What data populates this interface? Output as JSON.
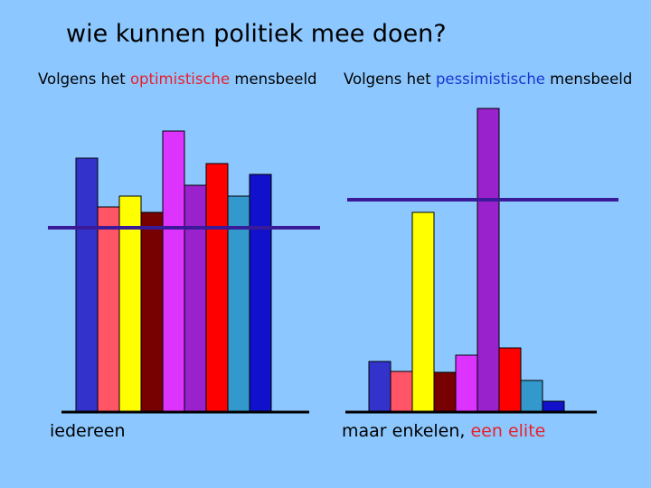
{
  "title": "wie kunnen politiek mee doen?",
  "chart_data": [
    {
      "type": "bar",
      "subtitle": {
        "prefix": "Volgens het ",
        "highlight": "optimistische",
        "suffix": " mensbeeld",
        "highlight_color": "#e8202c"
      },
      "caption": {
        "prefix": "iedereen",
        "highlight": ""
      },
      "values": [
        280,
        226,
        238,
        220,
        310,
        250,
        274,
        238,
        262
      ],
      "threshold": 203,
      "ylim": [
        0,
        340
      ]
    },
    {
      "type": "bar",
      "subtitle": {
        "prefix": "Volgens het ",
        "highlight": "pessimistische",
        "suffix": " mensbeeld",
        "highlight_color": "#1a34d0"
      },
      "caption": {
        "prefix": "maar enkelen, ",
        "highlight": "een elite"
      },
      "values": [
        55,
        44,
        220,
        43,
        62,
        335,
        70,
        34,
        11
      ],
      "threshold": 234,
      "ylim": [
        0,
        340
      ]
    }
  ],
  "bar_colors": [
    "#3333cc",
    "#ff5566",
    "#ffff00",
    "#770000",
    "#dd33ff",
    "#9922cc",
    "#ff0000",
    "#3399cc",
    "#1111cc"
  ],
  "threshold_color": "#3a1a99"
}
